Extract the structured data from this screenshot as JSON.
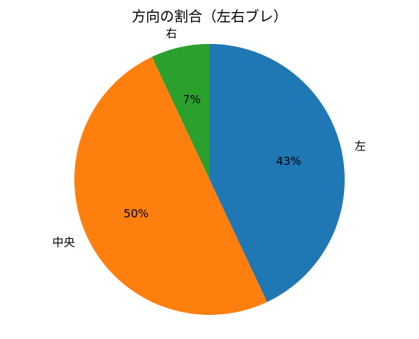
{
  "chart_data": {
    "type": "pie",
    "title": "方向の割合（左右ブレ）",
    "categories": [
      "左",
      "中央",
      "右"
    ],
    "values": [
      43,
      50,
      7
    ],
    "value_labels": [
      "43%",
      "50%",
      "7%"
    ],
    "colors": [
      "#1f77b4",
      "#ff7f0e",
      "#2ca02c"
    ],
    "start_angle": "top (90°)",
    "direction": "clockwise",
    "legend": "none"
  }
}
